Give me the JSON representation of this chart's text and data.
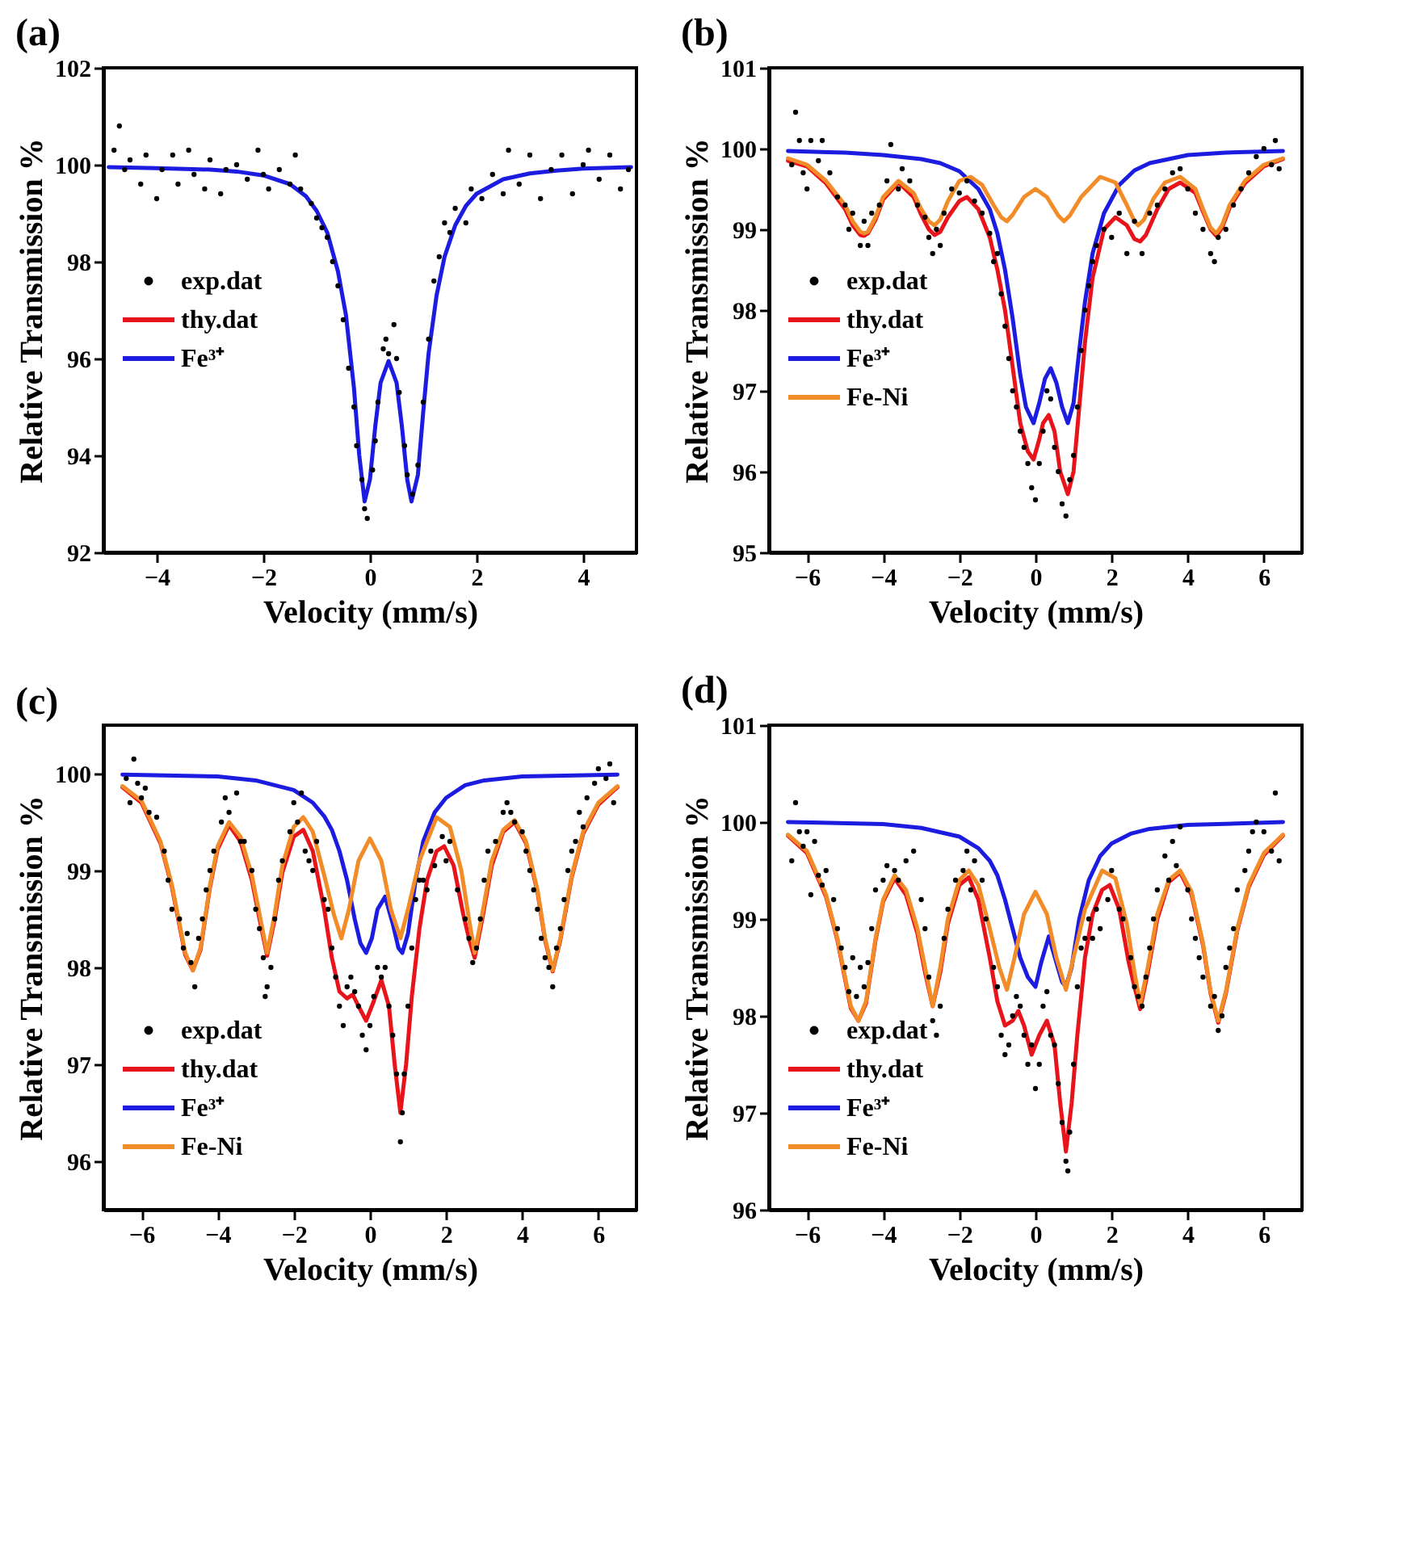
{
  "chart_data": [
    {
      "type": "line",
      "title": "(a)",
      "xlabel": "Velocity (mm/s)",
      "ylabel": "Relative Transmission %",
      "xlim": [
        -5,
        5
      ],
      "ylim": [
        92,
        102
      ],
      "xticks": [
        -4,
        -2,
        0,
        2,
        4
      ],
      "yticks": [
        92,
        94,
        96,
        98,
        100,
        102
      ],
      "legend": "left",
      "series": [
        {
          "name": "exp.dat",
          "type": "scatter",
          "marker": "circle",
          "color": "#000000",
          "x": [
            -4.8,
            -4.7,
            -4.6,
            -4.5,
            -4.3,
            -4.2,
            -4.0,
            -3.9,
            -3.7,
            -3.6,
            -3.4,
            -3.3,
            -3.1,
            -3.0,
            -2.8,
            -2.7,
            -2.5,
            -2.3,
            -2.1,
            -2.0,
            -1.9,
            -1.7,
            -1.5,
            -1.4,
            -1.3,
            -1.1,
            -1.0,
            -0.9,
            -0.8,
            -0.7,
            -0.6,
            -0.5,
            -0.4,
            -0.3,
            -0.25,
            -0.15,
            -0.1,
            -0.05,
            0.05,
            0.1,
            0.15,
            0.25,
            0.3,
            0.35,
            0.45,
            0.5,
            0.55,
            0.65,
            0.7,
            0.8,
            0.9,
            1.0,
            1.1,
            1.2,
            1.3,
            1.4,
            1.5,
            1.6,
            1.8,
            1.9,
            2.1,
            2.3,
            2.5,
            2.6,
            2.8,
            3.0,
            3.2,
            3.4,
            3.6,
            3.8,
            4.0,
            4.1,
            4.3,
            4.5,
            4.7,
            4.85
          ],
          "values": [
            100.3,
            100.8,
            99.9,
            100.1,
            99.6,
            100.2,
            99.3,
            99.9,
            100.2,
            99.6,
            100.3,
            99.8,
            99.5,
            100.1,
            99.4,
            99.9,
            100.0,
            99.7,
            100.3,
            99.8,
            99.5,
            99.9,
            99.6,
            100.2,
            99.5,
            99.2,
            98.9,
            98.7,
            98.5,
            98.0,
            97.5,
            96.8,
            95.8,
            95.0,
            94.2,
            93.5,
            92.9,
            92.7,
            93.7,
            94.3,
            95.1,
            96.2,
            96.4,
            96.1,
            96.7,
            96.0,
            95.3,
            94.2,
            93.6,
            93.2,
            93.8,
            95.1,
            96.4,
            97.6,
            98.1,
            98.8,
            98.6,
            99.1,
            98.8,
            99.5,
            99.3,
            99.8,
            99.4,
            100.3,
            99.6,
            100.2,
            99.3,
            99.9,
            100.2,
            99.4,
            100.0,
            100.3,
            99.7,
            100.2,
            99.5,
            99.9
          ]
        },
        {
          "name": "thy.dat",
          "type": "line",
          "marker": "none",
          "color": "#e8141b"
        },
        {
          "name": "Fe³⁺",
          "type": "line",
          "marker": "none",
          "color": "#1c1ce0",
          "x": [
            -4.9,
            -4,
            -3,
            -2.5,
            -2,
            -1.5,
            -1.2,
            -1.0,
            -0.8,
            -0.6,
            -0.45,
            -0.3,
            -0.2,
            -0.1,
            0.0,
            0.1,
            0.2,
            0.35,
            0.5,
            0.6,
            0.7,
            0.78,
            0.9,
            1.0,
            1.1,
            1.25,
            1.4,
            1.6,
            1.8,
            2.0,
            2.5,
            3.0,
            3.5,
            4.0,
            4.9
          ],
          "values": [
            99.95,
            99.93,
            99.9,
            99.86,
            99.78,
            99.6,
            99.35,
            99.05,
            98.6,
            97.8,
            96.9,
            95.4,
            94.0,
            93.05,
            93.5,
            94.6,
            95.5,
            95.95,
            95.5,
            94.6,
            93.5,
            93.05,
            93.6,
            94.9,
            96.1,
            97.3,
            98.1,
            98.75,
            99.15,
            99.4,
            99.7,
            99.82,
            99.88,
            99.92,
            99.95
          ]
        }
      ]
    },
    {
      "type": "line",
      "title": "(b)",
      "xlabel": "Velocity (mm/s)",
      "ylabel": "Relative Transmission %",
      "xlim": [
        -7,
        7
      ],
      "ylim": [
        95,
        101
      ],
      "xticks": [
        -6,
        -4,
        -2,
        0,
        2,
        4,
        6
      ],
      "yticks": [
        95,
        96,
        97,
        98,
        99,
        100,
        101
      ],
      "legend": "left",
      "series": [
        {
          "name": "exp.dat",
          "type": "scatter",
          "marker": "circle",
          "color": "#000000",
          "x": [
            -6.4,
            -6.3,
            -6.2,
            -6.1,
            -6.0,
            -5.9,
            -5.7,
            -5.6,
            -5.4,
            -5.2,
            -5.0,
            -4.9,
            -4.8,
            -4.6,
            -4.5,
            -4.4,
            -4.3,
            -4.1,
            -3.9,
            -3.8,
            -3.6,
            -3.5,
            -3.3,
            -3.1,
            -2.9,
            -2.8,
            -2.7,
            -2.6,
            -2.5,
            -2.4,
            -2.2,
            -2.0,
            -1.8,
            -1.6,
            -1.4,
            -1.2,
            -1.1,
            -1.0,
            -0.9,
            -0.8,
            -0.7,
            -0.6,
            -0.5,
            -0.4,
            -0.3,
            -0.2,
            -0.1,
            0.0,
            0.1,
            0.2,
            0.3,
            0.4,
            0.5,
            0.6,
            0.7,
            0.8,
            0.9,
            1.0,
            1.1,
            1.2,
            1.3,
            1.4,
            1.5,
            1.6,
            1.8,
            2.0,
            2.2,
            2.4,
            2.6,
            2.8,
            3.0,
            3.2,
            3.4,
            3.6,
            3.8,
            4.0,
            4.2,
            4.4,
            4.6,
            4.7,
            4.8,
            5.0,
            5.2,
            5.4,
            5.6,
            5.8,
            6.0,
            6.2,
            6.3,
            6.4
          ],
          "values": [
            99.8,
            100.45,
            100.1,
            99.7,
            99.5,
            100.1,
            99.85,
            100.1,
            99.7,
            99.4,
            99.3,
            99.0,
            99.2,
            98.8,
            99.1,
            98.8,
            99.2,
            99.3,
            99.6,
            100.05,
            99.5,
            99.75,
            99.6,
            99.3,
            99.15,
            98.9,
            98.7,
            99.0,
            98.8,
            99.2,
            99.5,
            99.45,
            99.6,
            99.35,
            99.2,
            98.95,
            98.6,
            98.7,
            98.2,
            97.8,
            97.4,
            97.0,
            96.8,
            96.5,
            96.3,
            96.1,
            95.8,
            95.65,
            96.1,
            96.5,
            97.0,
            96.9,
            96.3,
            96.0,
            95.6,
            95.45,
            95.9,
            96.2,
            96.8,
            97.5,
            98.0,
            98.3,
            98.6,
            98.8,
            99.0,
            98.9,
            99.2,
            98.7,
            99.1,
            98.7,
            99.2,
            99.3,
            99.5,
            99.7,
            99.75,
            99.5,
            99.2,
            99.0,
            98.7,
            98.6,
            98.9,
            99.0,
            99.3,
            99.5,
            99.7,
            99.9,
            100.0,
            99.8,
            100.1,
            99.75
          ]
        },
        {
          "name": "thy.dat",
          "type": "line",
          "marker": "none",
          "color": "#e8141b",
          "x": [
            -6.5,
            -6,
            -5.5,
            -5,
            -4.8,
            -4.6,
            -4.5,
            -4.4,
            -4.2,
            -4,
            -3.6,
            -3.2,
            -3,
            -2.8,
            -2.65,
            -2.5,
            -2.3,
            -2,
            -1.8,
            -1.5,
            -1.2,
            -1,
            -0.8,
            -0.6,
            -0.4,
            -0.2,
            -0.05,
            0.1,
            0.2,
            0.35,
            0.5,
            0.65,
            0.85,
            1.0,
            1.15,
            1.3,
            1.5,
            1.8,
            2.1,
            2.4,
            2.6,
            2.75,
            2.9,
            3.2,
            3.5,
            3.8,
            4.2,
            4.4,
            4.6,
            4.75,
            4.9,
            5.1,
            5.5,
            6,
            6.5
          ],
          "values": [
            99.85,
            99.78,
            99.57,
            99.25,
            99.05,
            98.93,
            98.92,
            98.95,
            99.12,
            99.37,
            99.58,
            99.4,
            99.18,
            99.0,
            98.93,
            98.97,
            99.15,
            99.35,
            99.4,
            99.25,
            98.9,
            98.5,
            98.0,
            97.3,
            96.6,
            96.25,
            96.15,
            96.4,
            96.6,
            96.7,
            96.5,
            96.0,
            95.72,
            96.0,
            96.8,
            97.6,
            98.4,
            99.0,
            99.15,
            99.05,
            98.88,
            98.85,
            98.93,
            99.25,
            99.5,
            99.58,
            99.45,
            99.22,
            99.0,
            98.92,
            99.02,
            99.27,
            99.57,
            99.78,
            99.87
          ]
        },
        {
          "name": "Fe³⁺",
          "type": "line",
          "marker": "none",
          "color": "#1c1ce0",
          "x": [
            -6.5,
            -5,
            -4,
            -3,
            -2.5,
            -2,
            -1.5,
            -1.2,
            -1,
            -0.8,
            -0.6,
            -0.4,
            -0.25,
            -0.05,
            0.1,
            0.25,
            0.4,
            0.55,
            0.7,
            0.85,
            1.0,
            1.15,
            1.3,
            1.5,
            1.8,
            2.2,
            2.6,
            3,
            4,
            5,
            6.5
          ],
          "values": [
            99.97,
            99.95,
            99.92,
            99.87,
            99.82,
            99.72,
            99.5,
            99.25,
            98.95,
            98.5,
            97.9,
            97.2,
            96.8,
            96.6,
            96.85,
            97.15,
            97.28,
            97.1,
            96.8,
            96.6,
            96.85,
            97.5,
            98.1,
            98.7,
            99.2,
            99.55,
            99.73,
            99.82,
            99.92,
            99.95,
            99.97
          ]
        },
        {
          "name": "Fe-Ni",
          "type": "line",
          "marker": "none",
          "color": "#f28c28",
          "x": [
            -6.5,
            -6,
            -5.5,
            -5,
            -4.8,
            -4.6,
            -4.5,
            -4.4,
            -4.2,
            -4,
            -3.6,
            -3.2,
            -3,
            -2.8,
            -2.65,
            -2.5,
            -2.3,
            -2,
            -1.7,
            -1.4,
            -1.1,
            -0.9,
            -0.75,
            -0.6,
            -0.3,
            0,
            0.3,
            0.6,
            0.75,
            0.9,
            1.2,
            1.7,
            2.1,
            2.4,
            2.6,
            2.7,
            2.85,
            3.1,
            3.4,
            3.8,
            4.2,
            4.4,
            4.6,
            4.75,
            4.9,
            5.1,
            5.5,
            6,
            6.5
          ],
          "values": [
            99.88,
            99.8,
            99.6,
            99.3,
            99.1,
            98.97,
            98.95,
            98.97,
            99.15,
            99.4,
            99.6,
            99.45,
            99.25,
            99.1,
            99.05,
            99.12,
            99.35,
            99.6,
            99.65,
            99.55,
            99.3,
            99.15,
            99.1,
            99.18,
            99.4,
            99.5,
            99.4,
            99.17,
            99.1,
            99.17,
            99.4,
            99.65,
            99.58,
            99.3,
            99.1,
            99.05,
            99.12,
            99.38,
            99.58,
            99.65,
            99.5,
            99.25,
            99.02,
            98.95,
            99.05,
            99.3,
            99.6,
            99.8,
            99.88
          ]
        }
      ]
    },
    {
      "type": "line",
      "title": "(c)",
      "xlabel": "Velocity (mm/s)",
      "ylabel": "Relative Transmission %",
      "xlim": [
        -7,
        7
      ],
      "ylim": [
        95.5,
        100.5
      ],
      "xticks": [
        -6,
        -4,
        -2,
        0,
        2,
        4,
        6
      ],
      "yticks": [
        96,
        97,
        98,
        99,
        100
      ],
      "legend": "bottom left",
      "series": [
        {
          "name": "exp.dat",
          "type": "scatter",
          "marker": "circle",
          "color": "#000000",
          "x": [
            -6.4,
            -6.3,
            -6.2,
            -6.1,
            -6.0,
            -5.9,
            -5.8,
            -5.6,
            -5.4,
            -5.3,
            -5.2,
            -5.0,
            -4.9,
            -4.8,
            -4.7,
            -4.6,
            -4.5,
            -4.4,
            -4.3,
            -4.2,
            -4.1,
            -3.9,
            -3.8,
            -3.7,
            -3.5,
            -3.4,
            -3.3,
            -3.1,
            -3.0,
            -2.9,
            -2.8,
            -2.75,
            -2.7,
            -2.6,
            -2.5,
            -2.4,
            -2.3,
            -2.1,
            -2.0,
            -1.9,
            -1.8,
            -1.7,
            -1.6,
            -1.5,
            -1.4,
            -1.2,
            -1.1,
            -1.0,
            -0.9,
            -0.8,
            -0.7,
            -0.6,
            -0.5,
            -0.4,
            -0.3,
            -0.2,
            -0.1,
            0.0,
            0.1,
            0.2,
            0.3,
            0.4,
            0.5,
            0.6,
            0.7,
            0.8,
            0.85,
            0.9,
            1.0,
            1.1,
            1.2,
            1.3,
            1.4,
            1.5,
            1.6,
            1.7,
            1.9,
            2.0,
            2.1,
            2.3,
            2.5,
            2.6,
            2.7,
            2.8,
            2.9,
            3.0,
            3.1,
            3.3,
            3.5,
            3.6,
            3.7,
            3.8,
            4.0,
            4.1,
            4.2,
            4.3,
            4.4,
            4.5,
            4.6,
            4.7,
            4.8,
            4.9,
            5.0,
            5.1,
            5.2,
            5.3,
            5.4,
            5.5,
            5.6,
            5.7,
            5.9,
            6.0,
            6.2,
            6.3,
            6.4
          ],
          "values": [
            99.95,
            99.7,
            100.15,
            99.9,
            99.75,
            99.85,
            99.6,
            99.55,
            99.2,
            98.9,
            98.6,
            98.5,
            98.2,
            98.35,
            98.05,
            97.8,
            98.3,
            98.5,
            98.8,
            99.0,
            99.2,
            99.5,
            99.75,
            99.6,
            99.8,
            99.3,
            99.3,
            99.0,
            98.6,
            98.4,
            98.1,
            97.7,
            97.8,
            98.0,
            98.5,
            98.9,
            99.1,
            99.4,
            99.7,
            99.5,
            99.8,
            99.2,
            99.1,
            99.0,
            99.3,
            98.7,
            98.6,
            98.2,
            97.9,
            97.6,
            97.4,
            97.8,
            97.9,
            97.75,
            97.6,
            97.3,
            97.15,
            97.4,
            97.7,
            98.0,
            97.9,
            98.0,
            97.6,
            97.3,
            96.9,
            96.2,
            96.5,
            96.9,
            97.6,
            98.2,
            98.7,
            98.9,
            98.9,
            98.8,
            99.2,
            99.05,
            99.35,
            99.1,
            99.3,
            98.8,
            98.5,
            98.3,
            98.05,
            98.2,
            98.5,
            98.9,
            99.2,
            99.3,
            99.6,
            99.7,
            99.6,
            99.5,
            99.4,
            99.2,
            99.0,
            98.8,
            98.6,
            98.3,
            98.1,
            98.0,
            97.8,
            98.2,
            98.4,
            98.7,
            99.0,
            99.2,
            99.3,
            99.6,
            99.45,
            99.75,
            99.9,
            100.05,
            99.95,
            100.1,
            99.7
          ]
        },
        {
          "name": "thy.dat",
          "type": "line",
          "marker": "none",
          "color": "#e8141b",
          "x": [
            -6.5,
            -6,
            -5.5,
            -5.2,
            -5,
            -4.85,
            -4.65,
            -4.45,
            -4.2,
            -4,
            -3.7,
            -3.4,
            -3.1,
            -2.9,
            -2.7,
            -2.5,
            -2.3,
            -2,
            -1.75,
            -1.5,
            -1.2,
            -1,
            -0.8,
            -0.6,
            -0.45,
            -0.3,
            -0.1,
            0.1,
            0.3,
            0.5,
            0.65,
            0.8,
            0.95,
            1.1,
            1.3,
            1.5,
            1.75,
            1.95,
            2.2,
            2.45,
            2.6,
            2.75,
            2.95,
            3.2,
            3.5,
            3.8,
            4.1,
            4.4,
            4.6,
            4.8,
            5.0,
            5.3,
            5.6,
            6,
            6.5
          ],
          "values": [
            99.86,
            99.7,
            99.28,
            98.83,
            98.43,
            98.13,
            97.97,
            98.18,
            98.83,
            99.22,
            99.47,
            99.3,
            98.9,
            98.5,
            98.12,
            98.5,
            98.98,
            99.35,
            99.42,
            99.2,
            98.6,
            98.1,
            97.75,
            97.68,
            97.72,
            97.6,
            97.45,
            97.65,
            97.87,
            97.6,
            97.0,
            96.5,
            97.0,
            97.7,
            98.4,
            98.9,
            99.2,
            99.25,
            99.05,
            98.55,
            98.3,
            98.1,
            98.5,
            99.05,
            99.4,
            99.5,
            99.28,
            98.78,
            98.28,
            97.96,
            98.28,
            98.93,
            99.38,
            99.68,
            99.86
          ]
        },
        {
          "name": "Fe³⁺",
          "type": "line",
          "marker": "none",
          "color": "#1c1ce0",
          "x": [
            -6.5,
            -4,
            -3,
            -2,
            -1.5,
            -1.2,
            -1,
            -0.8,
            -0.6,
            -0.4,
            -0.25,
            -0.1,
            0.05,
            0.2,
            0.4,
            0.6,
            0.75,
            0.85,
            1.0,
            1.2,
            1.4,
            1.7,
            2,
            2.5,
            3,
            4,
            6.5
          ],
          "values": [
            99.99,
            99.97,
            99.93,
            99.83,
            99.7,
            99.56,
            99.42,
            99.2,
            98.9,
            98.5,
            98.25,
            98.15,
            98.3,
            98.6,
            98.73,
            98.45,
            98.2,
            98.15,
            98.35,
            98.9,
            99.3,
            99.6,
            99.75,
            99.88,
            99.93,
            99.97,
            99.99
          ]
        },
        {
          "name": "Fe-Ni",
          "type": "line",
          "marker": "none",
          "color": "#f28c28",
          "x": [
            -6.5,
            -6,
            -5.5,
            -5.2,
            -5,
            -4.85,
            -4.65,
            -4.45,
            -4.2,
            -4,
            -3.7,
            -3.4,
            -3.1,
            -2.9,
            -2.7,
            -2.5,
            -2.3,
            -2,
            -1.75,
            -1.5,
            -1.2,
            -0.95,
            -0.75,
            -0.55,
            -0.3,
            0,
            0.3,
            0.55,
            0.8,
            1.0,
            1.3,
            1.75,
            2.1,
            2.4,
            2.6,
            2.75,
            2.95,
            3.2,
            3.5,
            3.8,
            4.1,
            4.4,
            4.6,
            4.8,
            5.0,
            5.3,
            5.6,
            6,
            6.5
          ],
          "values": [
            99.87,
            99.72,
            99.3,
            98.85,
            98.45,
            98.15,
            97.97,
            98.2,
            98.85,
            99.25,
            99.5,
            99.35,
            98.95,
            98.55,
            98.15,
            98.55,
            99.05,
            99.45,
            99.55,
            99.4,
            98.95,
            98.55,
            98.3,
            98.6,
            99.1,
            99.33,
            99.1,
            98.6,
            98.3,
            98.6,
            99.1,
            99.55,
            99.45,
            99.0,
            98.5,
            98.15,
            98.55,
            99.1,
            99.42,
            99.52,
            99.3,
            98.8,
            98.3,
            97.97,
            98.3,
            98.95,
            99.4,
            99.7,
            99.87
          ]
        }
      ]
    },
    {
      "type": "line",
      "title": "(d)",
      "xlabel": "Velocity (mm/s)",
      "ylabel": "Relative Transmission %",
      "xlim": [
        -7,
        7
      ],
      "ylim": [
        96,
        101
      ],
      "xticks": [
        -6,
        -4,
        -2,
        0,
        2,
        4,
        6
      ],
      "yticks": [
        96,
        97,
        98,
        99,
        100,
        101
      ],
      "legend": "bottom left",
      "series": [
        {
          "name": "exp.dat",
          "type": "scatter",
          "marker": "circle",
          "color": "#000000",
          "x": [
            -6.4,
            -6.3,
            -6.2,
            -6.1,
            -6.0,
            -5.9,
            -5.8,
            -5.7,
            -5.6,
            -5.5,
            -5.3,
            -5.2,
            -5.1,
            -5.0,
            -4.9,
            -4.8,
            -4.7,
            -4.6,
            -4.5,
            -4.4,
            -4.3,
            -4.2,
            -4.0,
            -3.9,
            -3.7,
            -3.6,
            -3.4,
            -3.2,
            -3.0,
            -2.9,
            -2.8,
            -2.7,
            -2.6,
            -2.5,
            -2.4,
            -2.3,
            -2.1,
            -1.9,
            -1.8,
            -1.7,
            -1.6,
            -1.4,
            -1.3,
            -1.1,
            -1.0,
            -0.9,
            -0.8,
            -0.7,
            -0.6,
            -0.5,
            -0.4,
            -0.3,
            -0.2,
            -0.1,
            0.0,
            0.1,
            0.2,
            0.3,
            0.4,
            0.5,
            0.6,
            0.7,
            0.8,
            0.85,
            0.9,
            1.0,
            1.1,
            1.2,
            1.3,
            1.4,
            1.5,
            1.6,
            1.7,
            1.9,
            2.0,
            2.2,
            2.3,
            2.5,
            2.6,
            2.7,
            2.8,
            2.9,
            3.0,
            3.1,
            3.2,
            3.4,
            3.5,
            3.6,
            3.7,
            3.8,
            4.0,
            4.1,
            4.2,
            4.3,
            4.4,
            4.6,
            4.7,
            4.8,
            4.9,
            5.0,
            5.1,
            5.2,
            5.3,
            5.5,
            5.6,
            5.7,
            5.8,
            6.0,
            6.2,
            6.3,
            6.4
          ],
          "values": [
            99.6,
            100.2,
            99.9,
            99.75,
            99.9,
            99.25,
            99.8,
            99.45,
            99.35,
            99.5,
            99.2,
            98.9,
            98.7,
            98.5,
            98.25,
            98.6,
            98.2,
            98.5,
            98.3,
            98.55,
            98.9,
            99.3,
            99.4,
            99.55,
            99.5,
            99.4,
            99.6,
            99.7,
            99.2,
            98.9,
            98.4,
            97.95,
            97.8,
            98.1,
            98.8,
            99.1,
            99.4,
            99.5,
            99.7,
            99.3,
            99.6,
            99.4,
            99.0,
            98.5,
            98.3,
            97.8,
            97.6,
            97.7,
            98.0,
            98.2,
            98.1,
            97.8,
            97.5,
            97.7,
            97.25,
            97.5,
            98.1,
            98.25,
            97.8,
            97.7,
            97.3,
            96.9,
            96.5,
            96.4,
            96.8,
            97.5,
            98.3,
            98.7,
            98.8,
            99.0,
            98.8,
            99.1,
            98.9,
            99.2,
            99.5,
            99.1,
            99.0,
            98.6,
            98.3,
            98.2,
            98.1,
            98.4,
            98.7,
            99.0,
            99.3,
            99.65,
            99.4,
            99.8,
            99.55,
            99.95,
            99.3,
            99.0,
            98.8,
            98.6,
            98.4,
            98.1,
            98.2,
            97.85,
            98.0,
            98.5,
            98.7,
            98.9,
            99.3,
            99.5,
            99.7,
            99.9,
            100.0,
            99.9,
            99.7,
            100.3,
            99.6
          ]
        },
        {
          "name": "thy.dat",
          "type": "line",
          "marker": "none",
          "color": "#e8141b",
          "x": [
            -6.5,
            -6,
            -5.5,
            -5.2,
            -5,
            -4.85,
            -4.65,
            -4.45,
            -4.2,
            -4,
            -3.7,
            -3.4,
            -3.1,
            -2.9,
            -2.7,
            -2.5,
            -2.3,
            -2,
            -1.75,
            -1.5,
            -1.2,
            -1,
            -0.8,
            -0.6,
            -0.45,
            -0.3,
            -0.1,
            0.1,
            0.3,
            0.5,
            0.65,
            0.8,
            0.95,
            1.1,
            1.3,
            1.5,
            1.75,
            1.95,
            2.2,
            2.45,
            2.6,
            2.75,
            2.95,
            3.2,
            3.5,
            3.8,
            4.1,
            4.4,
            4.6,
            4.8,
            5.0,
            5.3,
            5.6,
            6,
            6.5
          ],
          "values": [
            99.86,
            99.68,
            99.23,
            98.78,
            98.38,
            98.08,
            97.95,
            98.13,
            98.78,
            99.18,
            99.42,
            99.25,
            98.85,
            98.45,
            98.1,
            98.45,
            98.95,
            99.35,
            99.43,
            99.2,
            98.6,
            98.15,
            97.9,
            97.95,
            98.05,
            97.9,
            97.6,
            97.8,
            97.95,
            97.7,
            97.1,
            96.6,
            97.1,
            97.8,
            98.6,
            99.05,
            99.3,
            99.35,
            99.1,
            98.55,
            98.3,
            98.07,
            98.45,
            99.0,
            99.38,
            99.48,
            99.25,
            98.73,
            98.23,
            97.93,
            98.23,
            98.88,
            99.33,
            99.66,
            99.86
          ]
        },
        {
          "name": "Fe³⁺",
          "type": "line",
          "marker": "none",
          "color": "#1c1ce0",
          "x": [
            -6.5,
            -4,
            -3,
            -2,
            -1.5,
            -1.2,
            -1,
            -0.8,
            -0.6,
            -0.4,
            -0.2,
            0,
            0.15,
            0.35,
            0.55,
            0.7,
            0.8,
            0.95,
            1.15,
            1.4,
            1.7,
            2,
            2.5,
            3,
            4,
            6.5
          ],
          "values": [
            100,
            99.98,
            99.94,
            99.85,
            99.73,
            99.6,
            99.45,
            99.2,
            98.9,
            98.6,
            98.4,
            98.3,
            98.55,
            98.82,
            98.55,
            98.35,
            98.3,
            98.5,
            99.0,
            99.4,
            99.65,
            99.78,
            99.88,
            99.93,
            99.97,
            100
          ]
        },
        {
          "name": "Fe-Ni",
          "type": "line",
          "marker": "none",
          "color": "#f28c28",
          "x": [
            -6.5,
            -6,
            -5.5,
            -5.2,
            -5,
            -4.85,
            -4.65,
            -4.45,
            -4.2,
            -4,
            -3.7,
            -3.4,
            -3.1,
            -2.9,
            -2.7,
            -2.5,
            -2.3,
            -2,
            -1.75,
            -1.5,
            -1.2,
            -0.95,
            -0.75,
            -0.55,
            -0.3,
            0,
            0.3,
            0.55,
            0.8,
            1.0,
            1.3,
            1.75,
            2.1,
            2.4,
            2.6,
            2.75,
            2.95,
            3.2,
            3.5,
            3.8,
            4.1,
            4.4,
            4.6,
            4.8,
            5.0,
            5.3,
            5.6,
            6,
            6.5
          ],
          "values": [
            99.87,
            99.7,
            99.25,
            98.8,
            98.4,
            98.1,
            97.95,
            98.15,
            98.8,
            99.2,
            99.45,
            99.3,
            98.9,
            98.5,
            98.1,
            98.5,
            99.0,
            99.4,
            99.5,
            99.35,
            98.9,
            98.5,
            98.27,
            98.6,
            99.05,
            99.28,
            99.05,
            98.6,
            98.27,
            98.6,
            99.1,
            99.5,
            99.42,
            98.95,
            98.45,
            98.12,
            98.5,
            99.05,
            99.4,
            99.5,
            99.28,
            98.75,
            98.25,
            97.95,
            98.25,
            98.9,
            99.35,
            99.68,
            99.87
          ]
        }
      ]
    }
  ]
}
